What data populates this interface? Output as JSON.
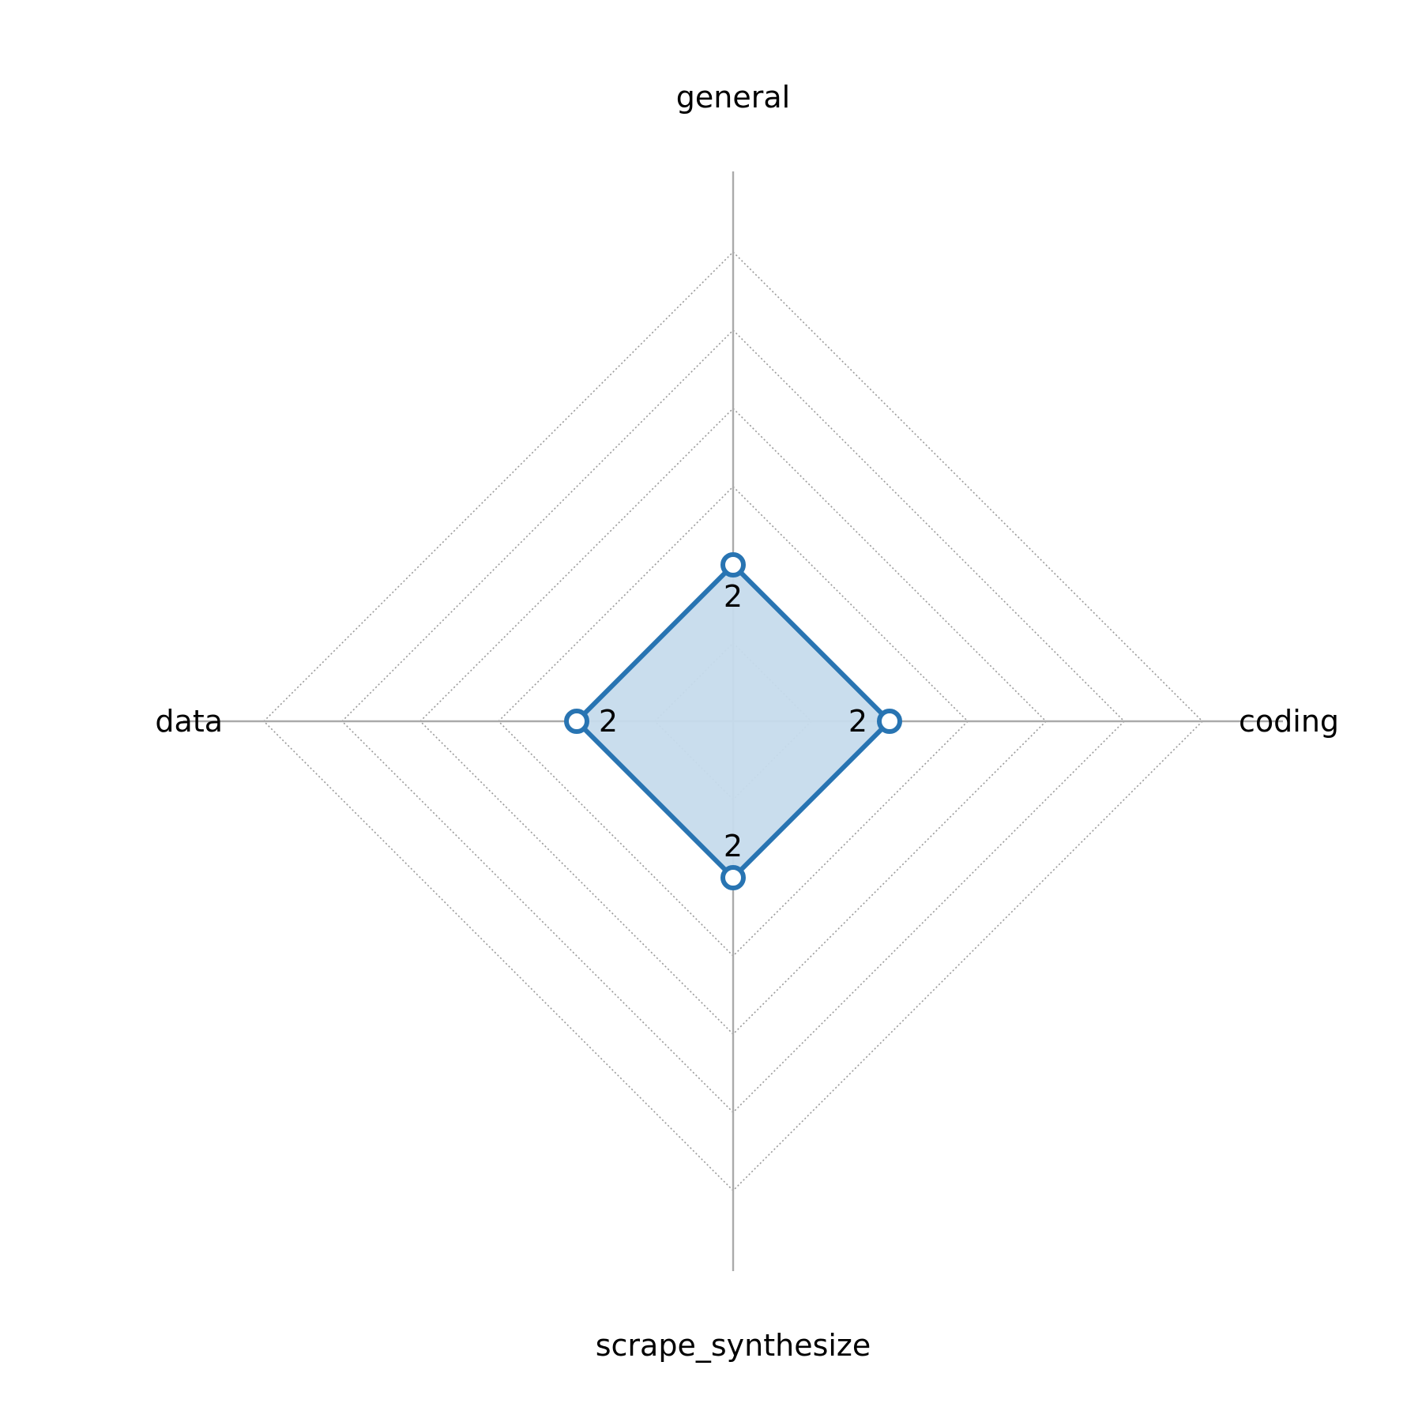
{
  "chart_data": {
    "type": "radar",
    "title": "",
    "axes": [
      "general",
      "coding",
      "scrape_synthesize",
      "data"
    ],
    "series": [
      {
        "values": [
          2,
          2,
          2,
          2
        ],
        "color": "#2874b2",
        "fill": "#c6dbec"
      }
    ],
    "value_labels": [
      "2",
      "2",
      "2",
      "2"
    ],
    "rlim": [
      0,
      7
    ],
    "rings": [
      1,
      2,
      3,
      4,
      5,
      6
    ],
    "grid": true,
    "grid_style": "dotted",
    "grid_color": "#999999",
    "spoke_color": "#aaaaaa",
    "legend": "none"
  }
}
